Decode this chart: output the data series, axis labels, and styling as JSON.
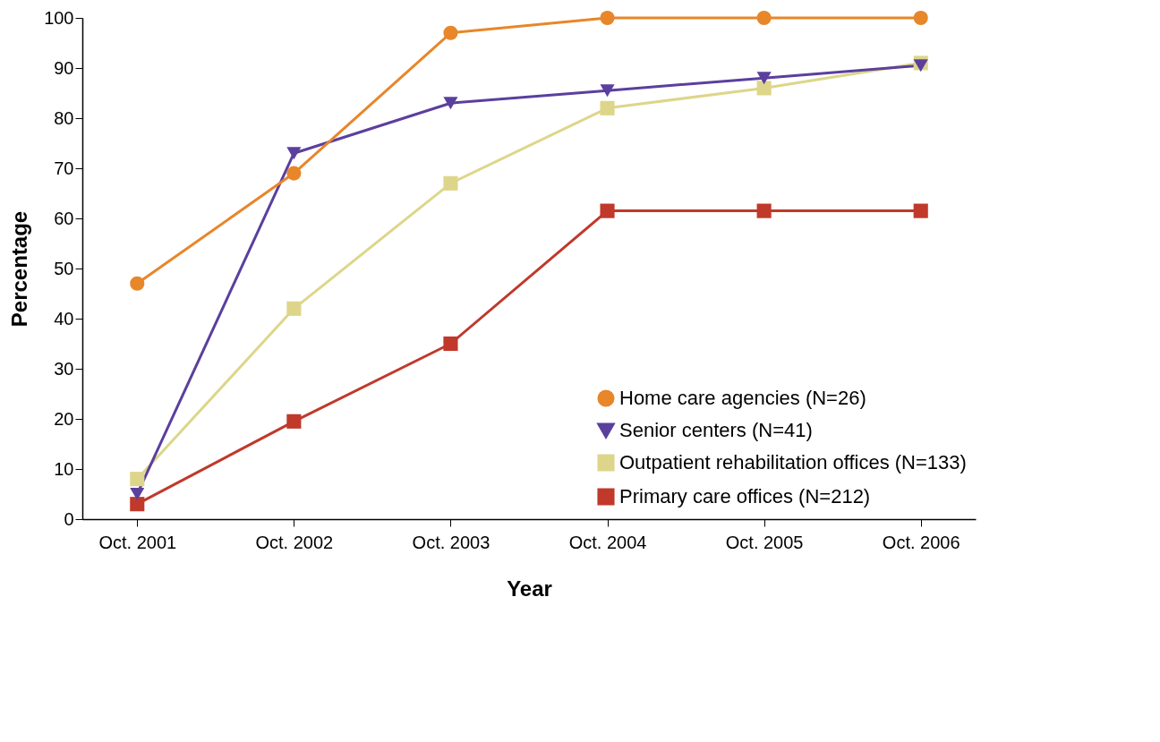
{
  "chart_data": {
    "type": "line",
    "xlabel": "Year",
    "ylabel": "Percentage",
    "categories": [
      "Oct. 2001",
      "Oct. 2002",
      "Oct. 2003",
      "Oct. 2004",
      "Oct. 2005",
      "Oct. 2006"
    ],
    "ylim": [
      0,
      100
    ],
    "yticks": [
      0,
      10,
      20,
      30,
      40,
      50,
      60,
      70,
      80,
      90,
      100
    ],
    "grid": false,
    "legend": "bottom right",
    "line_style": "solid",
    "series": [
      {
        "name": "Home care agencies (N=26)",
        "color": "#e8862a",
        "marker": "circle",
        "values": [
          47,
          69,
          97,
          100,
          100,
          100
        ]
      },
      {
        "name": "Senior centers (N=41)",
        "color": "#5b3f9e",
        "marker": "triangle",
        "values": [
          5,
          73,
          83,
          85.5,
          88,
          90.5
        ]
      },
      {
        "name": "Outpatient rehabilitation offices (N=133)",
        "color": "#ddd68a",
        "marker": "square",
        "values": [
          8,
          42,
          67,
          82,
          86,
          91
        ]
      },
      {
        "name": "Primary care offices (N=212)",
        "color": "#c0392b",
        "marker": "square",
        "values": [
          3,
          19.5,
          35,
          61.5,
          61.5,
          61.5
        ]
      }
    ]
  }
}
